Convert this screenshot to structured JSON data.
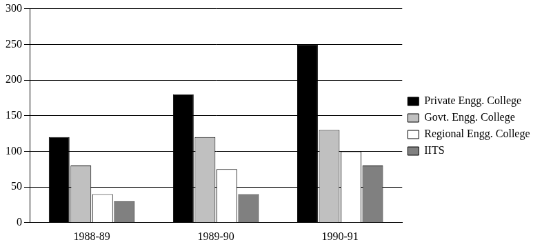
{
  "chart_data": {
    "type": "bar",
    "categories": [
      "1988-89",
      "1989-90",
      "1990-91"
    ],
    "series": [
      {
        "name": "Private Engg. College",
        "color": "#000000",
        "values": [
          120,
          180,
          250
        ]
      },
      {
        "name": "Govt. Engg. College",
        "color": "#c0c0c0",
        "values": [
          80,
          120,
          130
        ]
      },
      {
        "name": "Regional Engg. College",
        "color": "#ffffff",
        "values": [
          40,
          75,
          100
        ]
      },
      {
        "name": "IITS",
        "color": "#808080",
        "values": [
          30,
          40,
          80
        ]
      }
    ],
    "ylim": [
      0,
      300
    ],
    "yticks": [
      0,
      50,
      100,
      150,
      200,
      250,
      300
    ],
    "grid": true,
    "legend": "right"
  }
}
